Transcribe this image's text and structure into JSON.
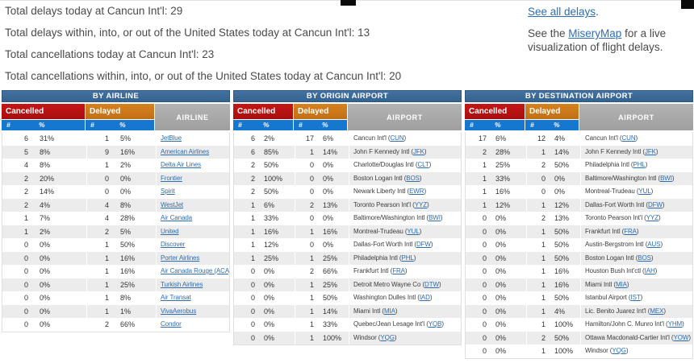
{
  "summary": {
    "lines": [
      "Total delays today at Cancun Int'l: 29",
      "Total delays within, into, or out of the United States today at Cancun Int'l: 13",
      "Total cancellations today at Cancun Int'l: 23",
      "Total cancellations within, into, or out of the United States today at Cancun Int'l: 20"
    ]
  },
  "links_panel": {
    "see_all_delays_link": "See all delays",
    "see_all_delays_suffix": ".",
    "misery_prefix": "See the ",
    "misery_link": "MiseryMap",
    "misery_suffix": " for a live visualization of flight delays."
  },
  "table_common": {
    "cancelled_label": "Cancelled",
    "delayed_label": "Delayed",
    "count_symbol": "#",
    "percent_symbol": "%",
    "code_open": "(",
    "code_close": ")"
  },
  "colors": {
    "title_bar_blue": "#3a6a99",
    "cancelled_red": "#bb1212",
    "delayed_orange": "#cc7a1a",
    "subheader_blue": "#1577d0",
    "name_header_gray": "#a9a9a9",
    "link_blue": "#2e6daf",
    "row_alt_gray": "#ececec"
  },
  "tables": [
    {
      "title": "BY AIRLINE",
      "name_header": "AIRLINE",
      "link_style": "airline",
      "rows": [
        {
          "c_num": "6",
          "c_pct": "31%",
          "d_num": "1",
          "d_pct": "5%",
          "name": "JetBlue"
        },
        {
          "c_num": "5",
          "c_pct": "8%",
          "d_num": "9",
          "d_pct": "16%",
          "name": "American Airlines"
        },
        {
          "c_num": "4",
          "c_pct": "8%",
          "d_num": "1",
          "d_pct": "2%",
          "name": "Delta Air Lines"
        },
        {
          "c_num": "2",
          "c_pct": "20%",
          "d_num": "0",
          "d_pct": "0%",
          "name": "Frontier"
        },
        {
          "c_num": "2",
          "c_pct": "14%",
          "d_num": "0",
          "d_pct": "0%",
          "name": "Spirit"
        },
        {
          "c_num": "2",
          "c_pct": "4%",
          "d_num": "4",
          "d_pct": "8%",
          "name": "WestJet"
        },
        {
          "c_num": "1",
          "c_pct": "7%",
          "d_num": "4",
          "d_pct": "28%",
          "name": "Air Canada"
        },
        {
          "c_num": "1",
          "c_pct": "2%",
          "d_num": "2",
          "d_pct": "5%",
          "name": "United"
        },
        {
          "c_num": "0",
          "c_pct": "0%",
          "d_num": "1",
          "d_pct": "50%",
          "name": "Discover"
        },
        {
          "c_num": "0",
          "c_pct": "0%",
          "d_num": "1",
          "d_pct": "16%",
          "name": "Porter Airlines"
        },
        {
          "c_num": "0",
          "c_pct": "0%",
          "d_num": "1",
          "d_pct": "16%",
          "name": "Air Canada Rouge (ACA)"
        },
        {
          "c_num": "0",
          "c_pct": "0%",
          "d_num": "1",
          "d_pct": "25%",
          "name": "Turkish Airlines"
        },
        {
          "c_num": "0",
          "c_pct": "0%",
          "d_num": "1",
          "d_pct": "8%",
          "name": "Air Transat"
        },
        {
          "c_num": "0",
          "c_pct": "0%",
          "d_num": "1",
          "d_pct": "1%",
          "name": "VivaAerobus"
        },
        {
          "c_num": "0",
          "c_pct": "0%",
          "d_num": "2",
          "d_pct": "66%",
          "name": "Condor"
        }
      ]
    },
    {
      "title": "BY ORIGIN AIRPORT",
      "name_header": "AIRPORT",
      "link_style": "airport",
      "rows": [
        {
          "c_num": "6",
          "c_pct": "2%",
          "d_num": "17",
          "d_pct": "6%",
          "name": "Cancun Int'l",
          "code": "CUN"
        },
        {
          "c_num": "6",
          "c_pct": "85%",
          "d_num": "1",
          "d_pct": "14%",
          "name": "John F Kennedy Intl",
          "code": "JFK"
        },
        {
          "c_num": "2",
          "c_pct": "50%",
          "d_num": "0",
          "d_pct": "0%",
          "name": "Charlotte/Douglas Intl",
          "code": "CLT"
        },
        {
          "c_num": "2",
          "c_pct": "100%",
          "d_num": "0",
          "d_pct": "0%",
          "name": "Boston Logan Intl",
          "code": "BOS"
        },
        {
          "c_num": "2",
          "c_pct": "50%",
          "d_num": "0",
          "d_pct": "0%",
          "name": "Newark Liberty Intl",
          "code": "EWR"
        },
        {
          "c_num": "1",
          "c_pct": "6%",
          "d_num": "2",
          "d_pct": "13%",
          "name": "Toronto Pearson Int'l",
          "code": "YYZ"
        },
        {
          "c_num": "1",
          "c_pct": "33%",
          "d_num": "0",
          "d_pct": "0%",
          "name": "Baltimore/Washington Intl",
          "code": "BWI"
        },
        {
          "c_num": "1",
          "c_pct": "16%",
          "d_num": "1",
          "d_pct": "16%",
          "name": "Montreal-Trudeau",
          "code": "YUL"
        },
        {
          "c_num": "1",
          "c_pct": "12%",
          "d_num": "0",
          "d_pct": "0%",
          "name": "Dallas-Fort Worth Intl",
          "code": "DFW"
        },
        {
          "c_num": "1",
          "c_pct": "25%",
          "d_num": "1",
          "d_pct": "25%",
          "name": "Philadelphia Intl",
          "code": "PHL"
        },
        {
          "c_num": "0",
          "c_pct": "0%",
          "d_num": "2",
          "d_pct": "66%",
          "name": "Frankfurt Intl",
          "code": "FRA"
        },
        {
          "c_num": "0",
          "c_pct": "0%",
          "d_num": "1",
          "d_pct": "25%",
          "name": "Detroit Metro Wayne Co",
          "code": "DTW"
        },
        {
          "c_num": "0",
          "c_pct": "0%",
          "d_num": "1",
          "d_pct": "50%",
          "name": "Washington Dulles Intl",
          "code": "IAD"
        },
        {
          "c_num": "0",
          "c_pct": "0%",
          "d_num": "1",
          "d_pct": "14%",
          "name": "Miami Intl",
          "code": "MIA"
        },
        {
          "c_num": "0",
          "c_pct": "0%",
          "d_num": "1",
          "d_pct": "33%",
          "name": "Quebec/Jean Lesage Int'l",
          "code": "YQB"
        },
        {
          "c_num": "0",
          "c_pct": "0%",
          "d_num": "1",
          "d_pct": "100%",
          "name": "Windsor",
          "code": "YQG"
        }
      ]
    },
    {
      "title": "BY DESTINATION AIRPORT",
      "name_header": "AIRPORT",
      "link_style": "airport",
      "rows": [
        {
          "c_num": "17",
          "c_pct": "6%",
          "d_num": "12",
          "d_pct": "4%",
          "name": "Cancun Int'l",
          "code": "CUN"
        },
        {
          "c_num": "2",
          "c_pct": "28%",
          "d_num": "1",
          "d_pct": "14%",
          "name": "John F Kennedy Intl",
          "code": "JFK"
        },
        {
          "c_num": "1",
          "c_pct": "25%",
          "d_num": "2",
          "d_pct": "50%",
          "name": "Philadelphia Intl",
          "code": "PHL"
        },
        {
          "c_num": "1",
          "c_pct": "33%",
          "d_num": "0",
          "d_pct": "0%",
          "name": "Baltimore/Washington Intl",
          "code": "BWI"
        },
        {
          "c_num": "1",
          "c_pct": "16%",
          "d_num": "0",
          "d_pct": "0%",
          "name": "Montreal-Trudeau",
          "code": "YUL"
        },
        {
          "c_num": "1",
          "c_pct": "12%",
          "d_num": "1",
          "d_pct": "12%",
          "name": "Dallas-Fort Worth Intl",
          "code": "DFW"
        },
        {
          "c_num": "0",
          "c_pct": "0%",
          "d_num": "2",
          "d_pct": "13%",
          "name": "Toronto Pearson Int'l",
          "code": "YYZ"
        },
        {
          "c_num": "0",
          "c_pct": "0%",
          "d_num": "1",
          "d_pct": "50%",
          "name": "Frankfurt Intl",
          "code": "FRA"
        },
        {
          "c_num": "0",
          "c_pct": "0%",
          "d_num": "1",
          "d_pct": "50%",
          "name": "Austin-Bergstrom Intl",
          "code": "AUS"
        },
        {
          "c_num": "0",
          "c_pct": "0%",
          "d_num": "1",
          "d_pct": "50%",
          "name": "Boston Logan Intl",
          "code": "BOS"
        },
        {
          "c_num": "0",
          "c_pct": "0%",
          "d_num": "1",
          "d_pct": "16%",
          "name": "Houston Bush Int'ctl",
          "code": "IAH"
        },
        {
          "c_num": "0",
          "c_pct": "0%",
          "d_num": "1",
          "d_pct": "16%",
          "name": "Miami Intl",
          "code": "MIA"
        },
        {
          "c_num": "0",
          "c_pct": "0%",
          "d_num": "1",
          "d_pct": "50%",
          "name": "Istanbul Airport",
          "code": "IST"
        },
        {
          "c_num": "0",
          "c_pct": "0%",
          "d_num": "1",
          "d_pct": "4%",
          "name": "Lic. Benito Juarez Int'l",
          "code": "MEX"
        },
        {
          "c_num": "0",
          "c_pct": "0%",
          "d_num": "1",
          "d_pct": "100%",
          "name": "Hamilton/John C. Munro Int'l",
          "code": "YHM"
        },
        {
          "c_num": "0",
          "c_pct": "0%",
          "d_num": "2",
          "d_pct": "50%",
          "name": "Ottawa Macdonald-Cartier Int'l",
          "code": "YOW"
        },
        {
          "c_num": "0",
          "c_pct": "0%",
          "d_num": "1",
          "d_pct": "100%",
          "name": "Windsor",
          "code": "YQG"
        }
      ]
    }
  ]
}
